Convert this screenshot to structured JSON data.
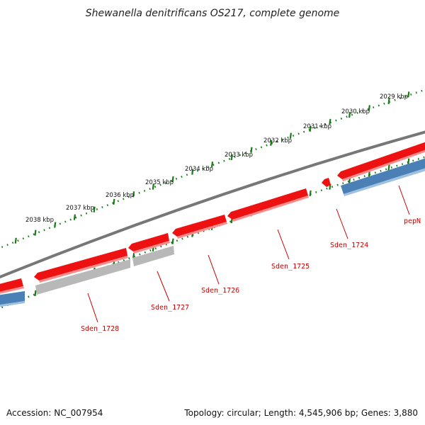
{
  "title": "Shewanella denitrificans OS217, complete genome",
  "footer": {
    "accession": "Accession: NC_007954",
    "summary": "Topology: circular; Length: 4,545,906 bp; Genes: 3,880"
  },
  "kbp_ticks": [
    "2029 kbp",
    "2030 kbp",
    "2031 kbp",
    "2032 kbp",
    "2033 kbp",
    "2034 kbp",
    "2035 kbp",
    "2036 kbp",
    "2037 kbp",
    "2038 kbp"
  ],
  "gene_labels": [
    "pepN",
    "Sden_1724",
    "Sden_1725",
    "Sden_1726",
    "Sden_1727",
    "Sden_1728"
  ],
  "colors": {
    "cds": "#ee1111",
    "cds_shadow": "#ff8a8a",
    "gray_feature": "#b8b8b8",
    "blue_feature": "#4a80b5",
    "backbone": "#777777",
    "ruler": "#1a7a1a",
    "label": "#cc0000"
  }
}
